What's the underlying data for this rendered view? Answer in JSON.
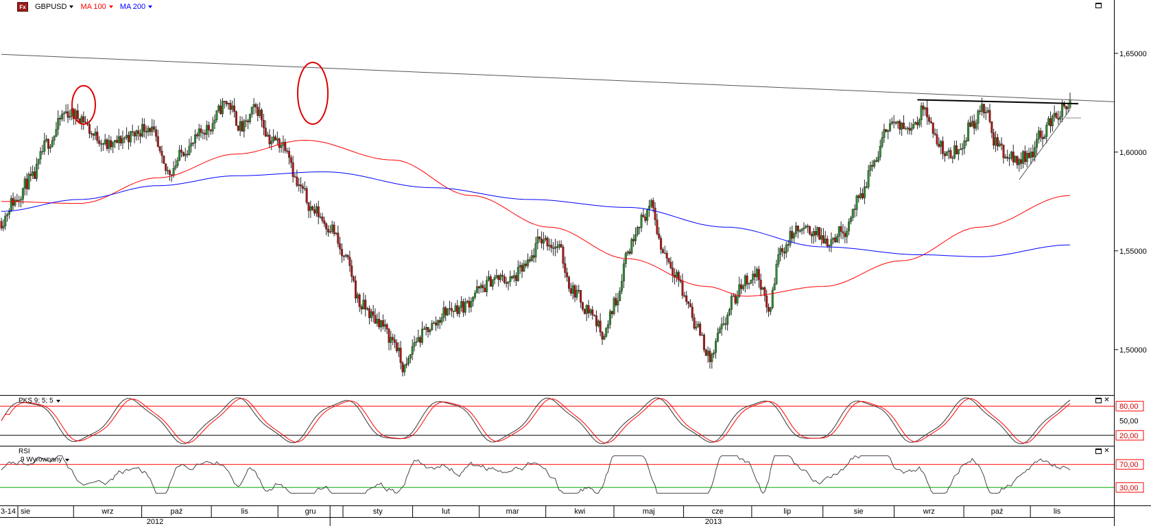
{
  "header": {
    "logo_text": "Fx",
    "symbol": "GBPUSD",
    "ma1_label": "MA 100",
    "ma2_label": "MA 200",
    "ma1_color": "#ff0000",
    "ma2_color": "#0000ff"
  },
  "price_axis": {
    "ticks": [
      "1,65000",
      "1,60000",
      "1,55000",
      "1,50000"
    ],
    "values": [
      1.65,
      1.6,
      1.55,
      1.5
    ],
    "range": [
      1.477,
      1.677
    ]
  },
  "pks": {
    "label": "PKS 9; 5; 5",
    "levels": [
      "80,00",
      "50,00",
      "20,00"
    ],
    "level_values": [
      80,
      50,
      20
    ]
  },
  "rsi": {
    "label": "RSI",
    "sublabel": "9 Wyrownany",
    "levels": [
      "70,00",
      "30,00"
    ],
    "level_values": [
      70,
      30
    ]
  },
  "time_axis": {
    "edge_label": "3-14",
    "months": [
      "sie",
      "wrz",
      "paź",
      "lis",
      "gru",
      "sty",
      "lut",
      "mar",
      "kwi",
      "maj",
      "cze",
      "lip",
      "sie",
      "wrz",
      "paź",
      "lis"
    ],
    "years": [
      "2012",
      "2013"
    ]
  },
  "chart_data": {
    "type": "candlestick",
    "symbol": "GBPUSD",
    "ylim": [
      1.477,
      1.677
    ],
    "close_anchors": [
      {
        "i": 0,
        "v": 1.565
      },
      {
        "i": 6,
        "v": 1.575
      },
      {
        "i": 15,
        "v": 1.586
      },
      {
        "i": 24,
        "v": 1.605
      },
      {
        "i": 33,
        "v": 1.62
      },
      {
        "i": 40,
        "v": 1.618
      },
      {
        "i": 48,
        "v": 1.608
      },
      {
        "i": 55,
        "v": 1.603
      },
      {
        "i": 65,
        "v": 1.608
      },
      {
        "i": 75,
        "v": 1.613
      },
      {
        "i": 85,
        "v": 1.59
      },
      {
        "i": 95,
        "v": 1.602
      },
      {
        "i": 105,
        "v": 1.612
      },
      {
        "i": 115,
        "v": 1.625
      },
      {
        "i": 123,
        "v": 1.612
      },
      {
        "i": 130,
        "v": 1.622
      },
      {
        "i": 138,
        "v": 1.606
      },
      {
        "i": 145,
        "v": 1.604
      },
      {
        "i": 152,
        "v": 1.582
      },
      {
        "i": 160,
        "v": 1.57
      },
      {
        "i": 168,
        "v": 1.562
      },
      {
        "i": 176,
        "v": 1.545
      },
      {
        "i": 184,
        "v": 1.522
      },
      {
        "i": 192,
        "v": 1.515
      },
      {
        "i": 200,
        "v": 1.505
      },
      {
        "i": 206,
        "v": 1.49
      },
      {
        "i": 212,
        "v": 1.505
      },
      {
        "i": 220,
        "v": 1.512
      },
      {
        "i": 228,
        "v": 1.52
      },
      {
        "i": 236,
        "v": 1.522
      },
      {
        "i": 244,
        "v": 1.53
      },
      {
        "i": 252,
        "v": 1.536
      },
      {
        "i": 260,
        "v": 1.535
      },
      {
        "i": 268,
        "v": 1.542
      },
      {
        "i": 276,
        "v": 1.556
      },
      {
        "i": 284,
        "v": 1.552
      },
      {
        "i": 292,
        "v": 1.53
      },
      {
        "i": 300,
        "v": 1.52
      },
      {
        "i": 308,
        "v": 1.508
      },
      {
        "i": 314,
        "v": 1.525
      },
      {
        "i": 320,
        "v": 1.55
      },
      {
        "i": 326,
        "v": 1.565
      },
      {
        "i": 332,
        "v": 1.572
      },
      {
        "i": 338,
        "v": 1.55
      },
      {
        "i": 344,
        "v": 1.54
      },
      {
        "i": 350,
        "v": 1.525
      },
      {
        "i": 356,
        "v": 1.51
      },
      {
        "i": 362,
        "v": 1.495
      },
      {
        "i": 368,
        "v": 1.51
      },
      {
        "i": 374,
        "v": 1.525
      },
      {
        "i": 380,
        "v": 1.535
      },
      {
        "i": 386,
        "v": 1.538
      },
      {
        "i": 392,
        "v": 1.52
      },
      {
        "i": 398,
        "v": 1.55
      },
      {
        "i": 406,
        "v": 1.56
      },
      {
        "i": 414,
        "v": 1.56
      },
      {
        "i": 422,
        "v": 1.555
      },
      {
        "i": 430,
        "v": 1.56
      },
      {
        "i": 438,
        "v": 1.575
      },
      {
        "i": 446,
        "v": 1.595
      },
      {
        "i": 454,
        "v": 1.615
      },
      {
        "i": 460,
        "v": 1.612
      },
      {
        "i": 466,
        "v": 1.615
      },
      {
        "i": 472,
        "v": 1.622
      },
      {
        "i": 478,
        "v": 1.605
      },
      {
        "i": 484,
        "v": 1.598
      },
      {
        "i": 490,
        "v": 1.603
      },
      {
        "i": 496,
        "v": 1.615
      },
      {
        "i": 502,
        "v": 1.622
      },
      {
        "i": 508,
        "v": 1.605
      },
      {
        "i": 514,
        "v": 1.598
      },
      {
        "i": 520,
        "v": 1.596
      },
      {
        "i": 526,
        "v": 1.6
      },
      {
        "i": 532,
        "v": 1.61
      },
      {
        "i": 538,
        "v": 1.618
      },
      {
        "i": 544,
        "v": 1.622
      },
      {
        "i": 546,
        "v": 1.626
      }
    ],
    "ma100_anchors": [
      {
        "i": 0,
        "v": 1.575
      },
      {
        "i": 40,
        "v": 1.574
      },
      {
        "i": 80,
        "v": 1.587
      },
      {
        "i": 120,
        "v": 1.599
      },
      {
        "i": 155,
        "v": 1.606
      },
      {
        "i": 200,
        "v": 1.596
      },
      {
        "i": 240,
        "v": 1.578
      },
      {
        "i": 280,
        "v": 1.562
      },
      {
        "i": 320,
        "v": 1.546
      },
      {
        "i": 360,
        "v": 1.532
      },
      {
        "i": 380,
        "v": 1.527
      },
      {
        "i": 420,
        "v": 1.532
      },
      {
        "i": 460,
        "v": 1.545
      },
      {
        "i": 500,
        "v": 1.562
      },
      {
        "i": 546,
        "v": 1.578
      }
    ],
    "ma200_anchors": [
      {
        "i": 0,
        "v": 1.57
      },
      {
        "i": 40,
        "v": 1.576
      },
      {
        "i": 80,
        "v": 1.583
      },
      {
        "i": 120,
        "v": 1.588
      },
      {
        "i": 165,
        "v": 1.59
      },
      {
        "i": 220,
        "v": 1.582
      },
      {
        "i": 270,
        "v": 1.576
      },
      {
        "i": 320,
        "v": 1.572
      },
      {
        "i": 370,
        "v": 1.562
      },
      {
        "i": 420,
        "v": 1.552
      },
      {
        "i": 470,
        "v": 1.548
      },
      {
        "i": 500,
        "v": 1.547
      },
      {
        "i": 546,
        "v": 1.553
      }
    ],
    "bar_count": 547,
    "trendline": [
      {
        "i": 0,
        "v": 1.6495
      },
      {
        "i": 546,
        "v": 1.6255
      }
    ],
    "resistance": [
      {
        "i": 468,
        "v": 1.6265
      },
      {
        "i": 546,
        "v": 1.6245
      }
    ],
    "support_line": [
      {
        "i": 520,
        "v": 1.586
      },
      {
        "i": 546,
        "v": 1.6215
      }
    ],
    "pks_levels": [
      80,
      20
    ],
    "rsi_levels": [
      70,
      30
    ]
  }
}
